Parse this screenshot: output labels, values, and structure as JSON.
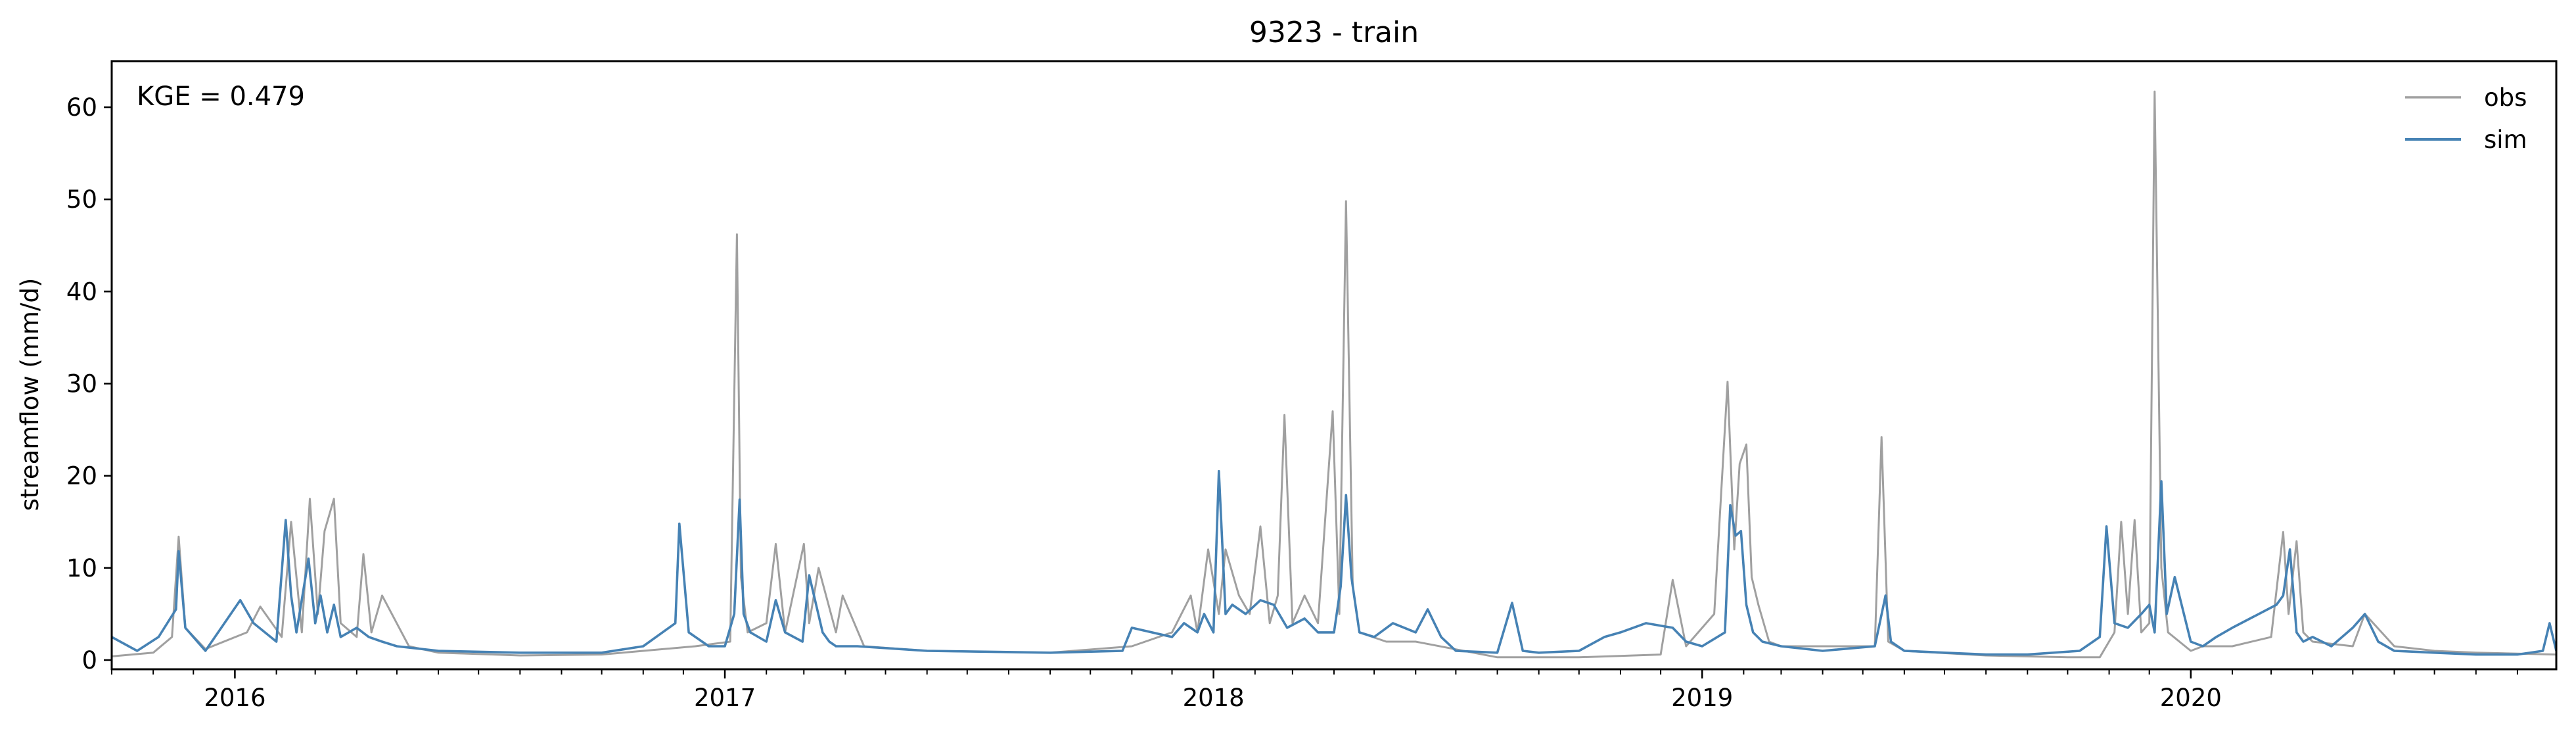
{
  "chart_data": {
    "type": "line",
    "title": "9323 - train",
    "xlabel": "",
    "ylabel": "streamflow (mm/d)",
    "annotation": "KGE = 0.479",
    "xlim": [
      "2015-10-01",
      "2020-09-30"
    ],
    "ylim": [
      -1,
      65
    ],
    "yticks": [
      0,
      10,
      20,
      30,
      40,
      50,
      60
    ],
    "xticks": [
      "2016-01-01",
      "2017-01-01",
      "2018-01-01",
      "2019-01-01",
      "2020-01-01"
    ],
    "xtick_labels": [
      "2016",
      "2017",
      "2018",
      "2019",
      "2020"
    ],
    "grid": false,
    "legend": {
      "position": "top-right",
      "entries": [
        "obs",
        "sim"
      ]
    },
    "colors": {
      "obs": "#a0a0a0",
      "sim": "#4682b4"
    },
    "series": [
      {
        "name": "obs",
        "x": [
          "2015-10-01",
          "2015-11-01",
          "2015-11-15",
          "2015-11-20",
          "2015-11-25",
          "2015-12-10",
          "2016-01-10",
          "2016-01-20",
          "2016-02-05",
          "2016-02-12",
          "2016-02-20",
          "2016-02-26",
          "2016-03-03",
          "2016-03-08",
          "2016-03-15",
          "2016-03-20",
          "2016-04-01",
          "2016-04-06",
          "2016-04-12",
          "2016-04-20",
          "2016-05-10",
          "2016-06-01",
          "2016-08-01",
          "2016-10-01",
          "2016-12-10",
          "2017-01-05",
          "2017-01-10",
          "2017-01-13",
          "2017-01-18",
          "2017-02-01",
          "2017-02-08",
          "2017-02-15",
          "2017-03-01",
          "2017-03-05",
          "2017-03-12",
          "2017-03-25",
          "2017-03-30",
          "2017-04-15",
          "2017-06-01",
          "2017-09-01",
          "2017-11-01",
          "2017-12-01",
          "2017-12-15",
          "2017-12-20",
          "2017-12-28",
          "2018-01-05",
          "2018-01-10",
          "2018-01-20",
          "2018-01-28",
          "2018-02-05",
          "2018-02-12",
          "2018-02-18",
          "2018-02-23",
          "2018-03-01",
          "2018-03-10",
          "2018-03-20",
          "2018-03-31",
          "2018-04-05",
          "2018-04-10",
          "2018-04-15",
          "2018-04-20",
          "2018-05-10",
          "2018-06-01",
          "2018-08-01",
          "2018-10-01",
          "2018-12-01",
          "2018-12-10",
          "2018-12-20",
          "2019-01-10",
          "2019-01-20",
          "2019-01-25",
          "2019-01-29",
          "2019-02-03",
          "2019-02-07",
          "2019-02-12",
          "2019-02-20",
          "2019-03-01",
          "2019-04-01",
          "2019-05-10",
          "2019-05-15",
          "2019-05-20",
          "2019-06-01",
          "2019-08-01",
          "2019-10-01",
          "2019-10-25",
          "2019-11-05",
          "2019-11-10",
          "2019-11-15",
          "2019-11-20",
          "2019-11-25",
          "2019-12-01",
          "2019-12-05",
          "2019-12-10",
          "2019-12-15",
          "2020-01-01",
          "2020-01-10",
          "2020-02-01",
          "2020-03-01",
          "2020-03-10",
          "2020-03-14",
          "2020-03-20",
          "2020-03-25",
          "2020-04-01",
          "2020-05-01",
          "2020-05-10",
          "2020-06-01",
          "2020-07-01",
          "2020-08-01",
          "2020-09-30"
        ],
        "y": [
          0.4,
          0.8,
          2.5,
          13.4,
          3.5,
          1.2,
          3.0,
          5.8,
          2.5,
          15.0,
          3.0,
          17.5,
          5.0,
          14.0,
          17.5,
          4.0,
          2.5,
          11.5,
          3.0,
          7.0,
          1.5,
          0.8,
          0.5,
          0.6,
          1.5,
          2.0,
          46.2,
          9.0,
          3.0,
          4.0,
          12.6,
          3.0,
          12.6,
          4.0,
          10.0,
          3.0,
          7.0,
          1.5,
          1.0,
          0.8,
          1.5,
          3.0,
          7.0,
          3.0,
          12.0,
          5.0,
          12.0,
          7.0,
          5.0,
          14.5,
          4.0,
          7.0,
          26.6,
          4.0,
          7.0,
          4.0,
          27.0,
          5.0,
          49.8,
          8.0,
          3.0,
          2.0,
          2.0,
          0.3,
          0.3,
          0.6,
          8.7,
          1.5,
          5.0,
          30.2,
          12.0,
          21.3,
          23.4,
          9.0,
          6.0,
          2.0,
          1.5,
          1.5,
          1.5,
          24.2,
          2.0,
          1.0,
          0.5,
          0.3,
          0.3,
          3.0,
          15.0,
          5.0,
          15.2,
          3.0,
          4.0,
          61.7,
          10.0,
          3.0,
          1.0,
          1.5,
          1.5,
          2.5,
          13.9,
          5.0,
          12.9,
          3.0,
          2.0,
          1.5,
          5.0,
          1.5,
          1.0,
          0.8,
          0.6
        ]
      },
      {
        "name": "sim",
        "x": [
          "2015-10-01",
          "2015-10-20",
          "2015-11-05",
          "2015-11-18",
          "2015-11-20",
          "2015-11-25",
          "2015-12-10",
          "2016-01-05",
          "2016-01-15",
          "2016-02-01",
          "2016-02-08",
          "2016-02-12",
          "2016-02-16",
          "2016-02-25",
          "2016-03-01",
          "2016-03-05",
          "2016-03-10",
          "2016-03-15",
          "2016-03-20",
          "2016-04-01",
          "2016-04-10",
          "2016-04-20",
          "2016-05-01",
          "2016-06-01",
          "2016-08-01",
          "2016-10-01",
          "2016-11-01",
          "2016-11-25",
          "2016-11-28",
          "2016-12-05",
          "2016-12-20",
          "2017-01-01",
          "2017-01-08",
          "2017-01-12",
          "2017-01-15",
          "2017-01-20",
          "2017-02-01",
          "2017-02-08",
          "2017-02-15",
          "2017-02-28",
          "2017-03-05",
          "2017-03-15",
          "2017-03-20",
          "2017-03-25",
          "2017-04-10",
          "2017-06-01",
          "2017-09-01",
          "2017-10-25",
          "2017-11-01",
          "2017-12-01",
          "2017-12-10",
          "2017-12-20",
          "2017-12-25",
          "2018-01-01",
          "2018-01-05",
          "2018-01-10",
          "2018-01-15",
          "2018-01-25",
          "2018-02-05",
          "2018-02-15",
          "2018-02-25",
          "2018-03-10",
          "2018-03-20",
          "2018-04-01",
          "2018-04-06",
          "2018-04-10",
          "2018-04-14",
          "2018-04-20",
          "2018-05-01",
          "2018-05-15",
          "2018-06-01",
          "2018-06-10",
          "2018-06-20",
          "2018-07-01",
          "2018-08-01",
          "2018-08-12",
          "2018-08-20",
          "2018-09-01",
          "2018-10-01",
          "2018-10-20",
          "2018-11-01",
          "2018-11-20",
          "2018-12-10",
          "2018-12-20",
          "2019-01-01",
          "2019-01-18",
          "2019-01-22",
          "2019-01-26",
          "2019-01-30",
          "2019-02-03",
          "2019-02-08",
          "2019-02-15",
          "2019-03-01",
          "2019-04-01",
          "2019-05-10",
          "2019-05-18",
          "2019-05-22",
          "2019-06-01",
          "2019-07-01",
          "2019-08-01",
          "2019-09-01",
          "2019-10-10",
          "2019-10-25",
          "2019-10-30",
          "2019-11-05",
          "2019-11-15",
          "2019-11-25",
          "2019-12-01",
          "2019-12-05",
          "2019-12-10",
          "2019-12-14",
          "2019-12-20",
          "2020-01-01",
          "2020-01-10",
          "2020-01-20",
          "2020-02-01",
          "2020-03-05",
          "2020-03-10",
          "2020-03-15",
          "2020-03-20",
          "2020-03-25",
          "2020-04-01",
          "2020-04-15",
          "2020-05-01",
          "2020-05-10",
          "2020-05-20",
          "2020-06-01",
          "2020-07-01",
          "2020-08-01",
          "2020-09-01",
          "2020-09-20",
          "2020-09-25",
          "2020-09-30"
        ],
        "y": [
          2.5,
          1.0,
          2.5,
          5.5,
          11.8,
          3.5,
          1.0,
          6.5,
          4.0,
          2.0,
          15.2,
          7.0,
          3.0,
          11.0,
          4.0,
          7.0,
          3.0,
          6.0,
          2.5,
          3.5,
          2.5,
          2.0,
          1.5,
          1.0,
          0.8,
          0.8,
          1.5,
          4.0,
          14.8,
          3.0,
          1.5,
          1.5,
          5.0,
          17.4,
          5.0,
          3.0,
          2.0,
          6.5,
          3.0,
          2.0,
          9.2,
          3.0,
          2.0,
          1.5,
          1.5,
          1.0,
          0.8,
          1.0,
          3.5,
          2.5,
          4.0,
          3.0,
          5.0,
          3.0,
          20.5,
          5.0,
          6.0,
          5.0,
          6.5,
          6.0,
          3.5,
          4.5,
          3.0,
          3.0,
          8.0,
          17.9,
          9.0,
          3.0,
          2.5,
          4.0,
          3.0,
          5.5,
          2.5,
          1.0,
          0.8,
          6.2,
          1.0,
          0.8,
          1.0,
          2.5,
          3.0,
          4.0,
          3.5,
          2.0,
          1.5,
          3.0,
          16.8,
          13.5,
          14.0,
          6.0,
          3.0,
          2.0,
          1.5,
          1.0,
          1.5,
          7.0,
          2.0,
          1.0,
          0.8,
          0.6,
          0.6,
          1.0,
          2.5,
          14.5,
          4.0,
          3.5,
          5.0,
          6.0,
          3.0,
          19.4,
          5.0,
          9.0,
          2.0,
          1.5,
          2.5,
          3.5,
          6.0,
          7.0,
          12.0,
          3.0,
          2.0,
          2.5,
          1.5,
          3.5,
          5.0,
          2.0,
          1.0,
          0.8,
          0.6,
          0.6,
          1.0,
          4.0,
          1.0
        ]
      }
    ]
  }
}
